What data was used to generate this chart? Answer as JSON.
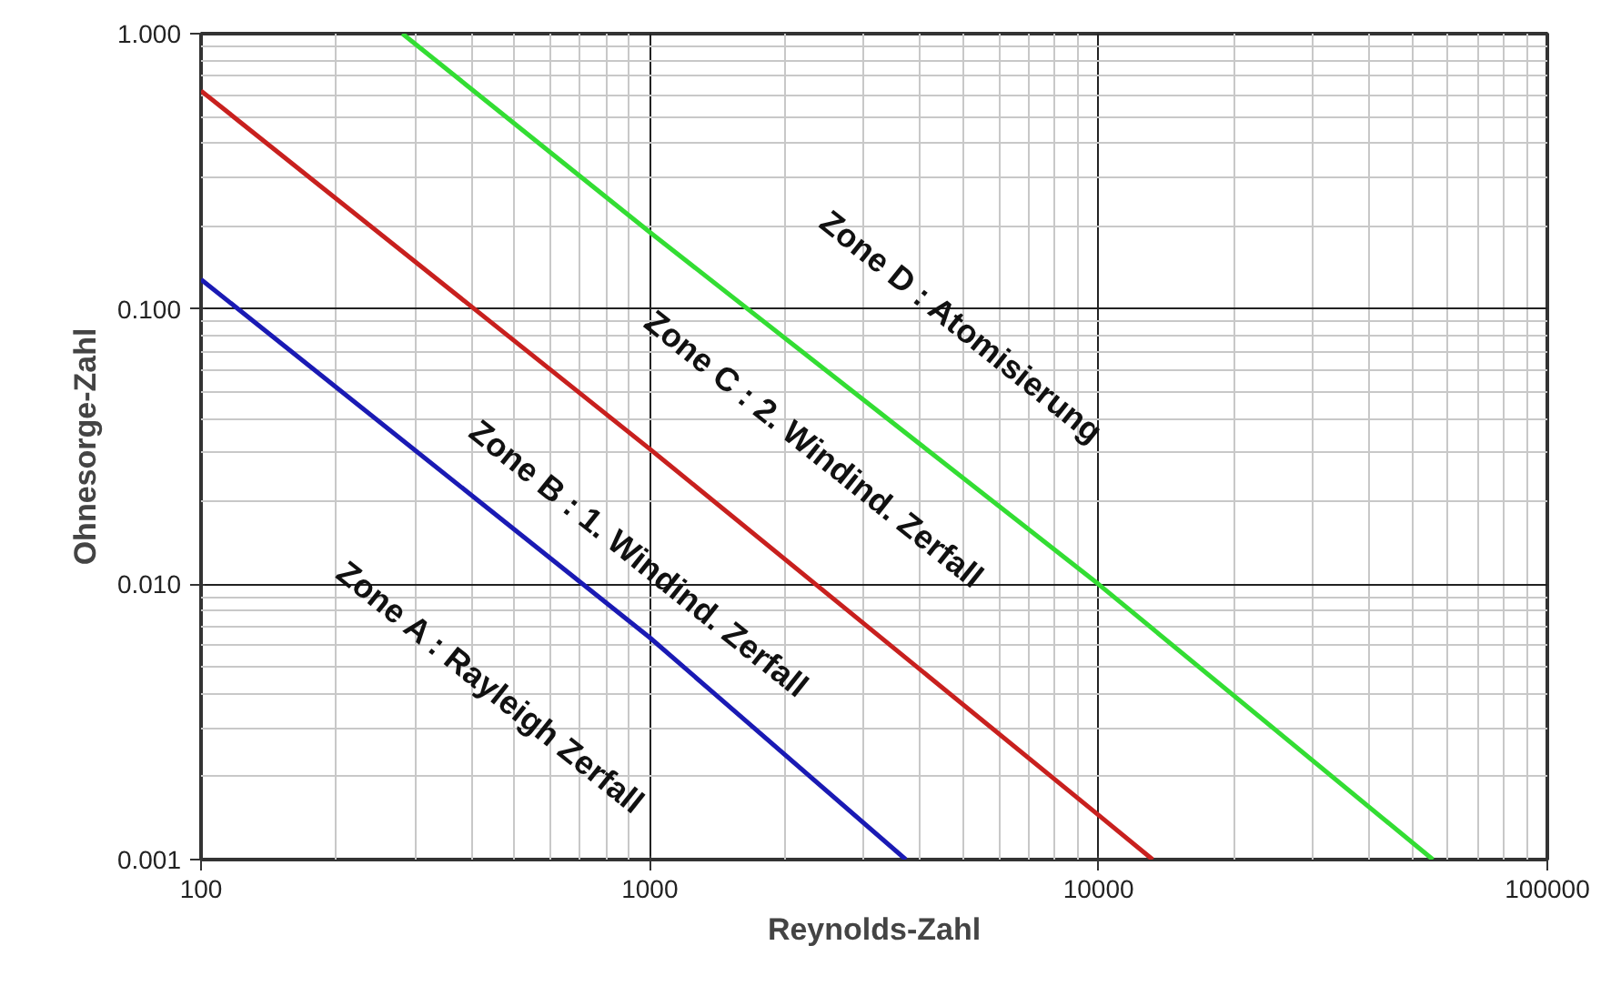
{
  "chart_data": {
    "type": "line",
    "xlabel": "Reynolds-Zahl",
    "ylabel": "Ohnesorge-Zahl",
    "log": "xy",
    "grid": true,
    "marker": "none",
    "line_style": "solid",
    "xlim": [
      100,
      100000
    ],
    "ylim": [
      0.001,
      1
    ],
    "xticks": [
      100,
      1000,
      10000,
      100000
    ],
    "yticks": [
      {
        "value": 0.001,
        "label": "0.001"
      },
      {
        "value": 0.01,
        "label": "0.010"
      },
      {
        "value": 0.1,
        "label": "0.100"
      },
      {
        "value": 1,
        "label": "1.000"
      }
    ],
    "series": [
      {
        "color": "#1a1ab4",
        "x": [
          100,
          1000,
          3720
        ],
        "values": [
          0.128,
          0.0064,
          0.001
        ]
      },
      {
        "color": "#c8201e",
        "x": [
          100,
          1000,
          10000,
          13200
        ],
        "values": [
          0.62,
          0.031,
          0.00145,
          0.001
        ]
      },
      {
        "color": "#33dd33",
        "x": [
          281,
          1000,
          10000,
          55600
        ],
        "values": [
          1,
          0.19,
          0.01,
          0.001
        ]
      }
    ],
    "annotations": [
      "Zone A : Rayleigh Zerfall",
      "Zone B : 1. Windind. Zerfall",
      "Zone C : 2. Windind. Zerfall",
      "Zone D : Atomisierung"
    ]
  }
}
